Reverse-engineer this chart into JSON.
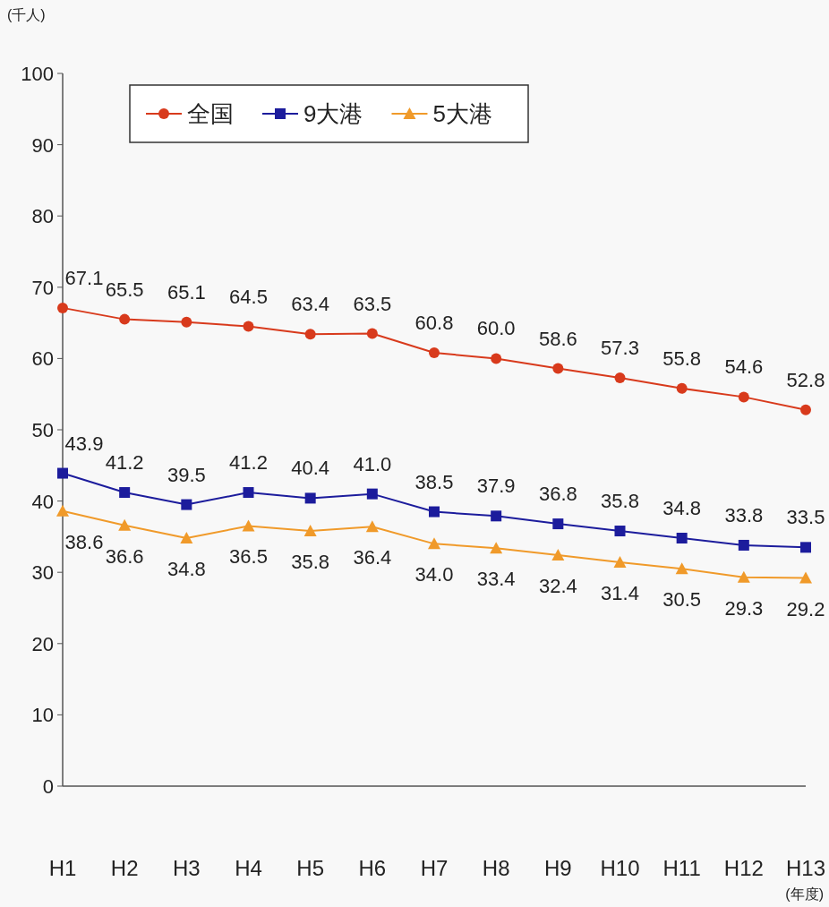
{
  "chart_data": {
    "type": "line",
    "ylabel": "(千人)",
    "xlabel": "(年度)",
    "categories": [
      "H1",
      "H2",
      "H3",
      "H4",
      "H5",
      "H6",
      "H7",
      "H8",
      "H9",
      "H10",
      "H11",
      "H12",
      "H13"
    ],
    "ylim": [
      0,
      100
    ],
    "yticks": [
      0,
      10,
      20,
      30,
      40,
      50,
      60,
      70,
      80,
      90,
      100
    ],
    "grid": false,
    "legend": "top left",
    "series": [
      {
        "name": "全国",
        "color": "#d83a1c",
        "marker": "circle",
        "values": [
          67.1,
          65.5,
          65.1,
          64.5,
          63.4,
          63.5,
          60.8,
          60.0,
          58.6,
          57.3,
          55.8,
          54.6,
          52.8
        ],
        "value_labels": [
          "67.1",
          "65.5",
          "65.1",
          "64.5",
          "63.4",
          "63.5",
          "60.8",
          "60.0",
          "58.6",
          "57.3",
          "55.8",
          "54.6",
          "52.8"
        ]
      },
      {
        "name": "9大港",
        "color": "#1c1c9c",
        "marker": "square",
        "values": [
          43.9,
          41.2,
          39.5,
          41.2,
          40.4,
          41.0,
          38.5,
          37.9,
          36.8,
          35.8,
          34.8,
          33.8,
          33.5
        ],
        "value_labels": [
          "43.9",
          "41.2",
          "39.5",
          "41.2",
          "40.4",
          "41.0",
          "38.5",
          "37.9",
          "36.8",
          "35.8",
          "34.8",
          "33.8",
          "33.5"
        ]
      },
      {
        "name": "5大港",
        "color": "#f09a2a",
        "marker": "triangle",
        "values": [
          38.6,
          36.6,
          34.8,
          36.5,
          35.8,
          36.4,
          34.0,
          33.4,
          32.4,
          31.4,
          30.5,
          29.3,
          29.2
        ],
        "value_labels": [
          "38.6",
          "36.6",
          "34.8",
          "36.5",
          "35.8",
          "36.4",
          "34.0",
          "33.4",
          "32.4",
          "31.4",
          "30.5",
          "29.3",
          "29.2"
        ]
      }
    ]
  }
}
